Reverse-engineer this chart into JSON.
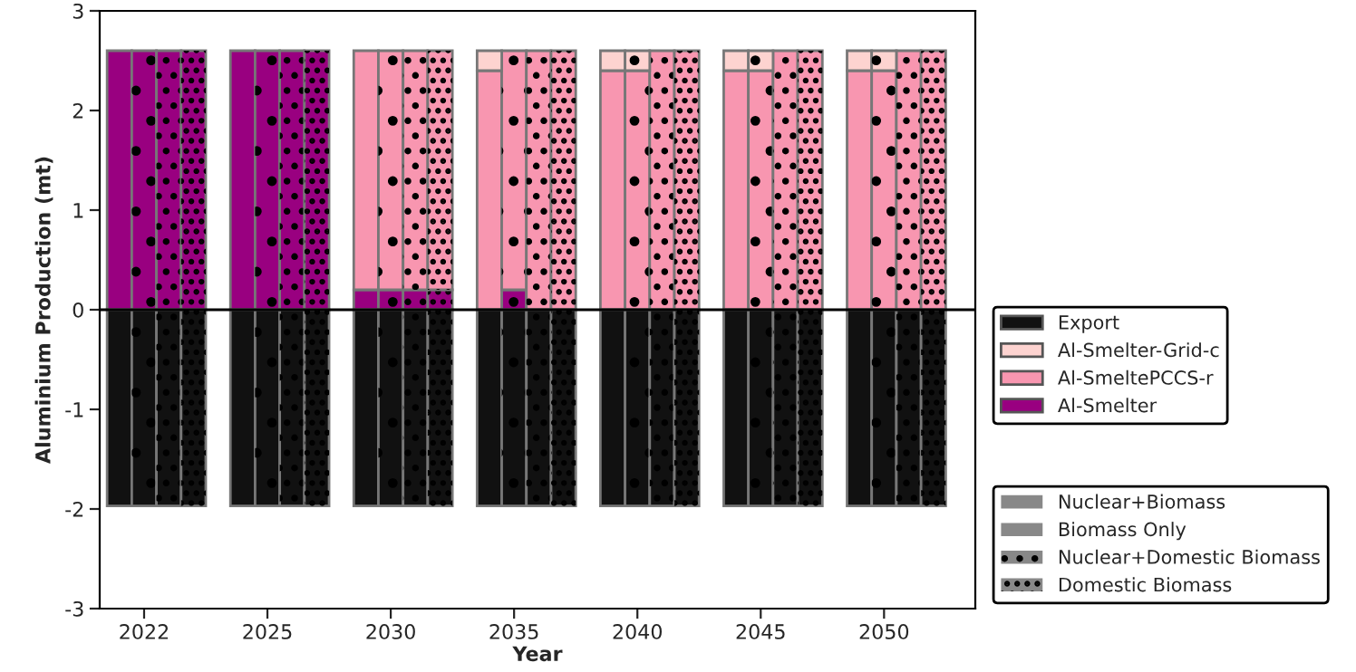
{
  "chart_data": {
    "type": "bar",
    "stacked": true,
    "xlabel": "Year",
    "ylabel": "Aluminium Production (mt)",
    "categories": [
      null,
      "2022",
      null,
      null,
      null,
      null,
      "2025",
      null,
      null,
      null,
      null,
      "2030",
      null,
      null,
      null,
      null,
      "2035",
      null,
      null,
      null,
      null,
      "2040",
      null,
      null,
      null,
      null,
      "2045",
      null,
      null,
      null,
      null,
      "2050",
      null,
      null
    ],
    "series": [
      {
        "name": "Al-Smelter",
        "color": "#990080",
        "values": [
          2.6,
          2.6,
          2.6,
          2.6,
          null,
          2.6,
          2.6,
          2.6,
          2.6,
          null,
          0.2,
          0.2,
          0.2,
          0.2,
          null,
          0,
          0.2,
          0,
          0,
          null,
          0,
          0,
          0,
          0,
          null,
          0,
          0,
          0,
          0,
          null,
          0,
          0,
          0,
          0
        ]
      },
      {
        "name": "Al-SmeltePCCS-r",
        "color": "#f896b0",
        "values": [
          0,
          0,
          0,
          0,
          null,
          0,
          0,
          0,
          0,
          null,
          2.4,
          2.4,
          2.4,
          2.4,
          null,
          2.4,
          2.4,
          2.6,
          2.6,
          null,
          2.4,
          2.4,
          2.6,
          2.6,
          null,
          2.4,
          2.4,
          2.6,
          2.6,
          null,
          2.4,
          2.4,
          2.6,
          2.6
        ]
      },
      {
        "name": "Al-Smelter-Grid-c",
        "color": "#fdd3d0",
        "values": [
          0,
          0,
          0,
          0,
          null,
          0,
          0,
          0,
          0,
          null,
          0,
          0,
          0,
          0,
          null,
          0.2,
          0,
          0,
          0,
          null,
          0.2,
          0.2,
          0,
          0,
          null,
          0.2,
          0.2,
          0,
          0,
          null,
          0.2,
          0.2,
          0,
          0
        ]
      },
      {
        "name": "Export",
        "color": "#111111",
        "values": [
          -1.97,
          -1.97,
          -1.97,
          -1.97,
          null,
          -1.97,
          -1.97,
          -1.97,
          -1.97,
          null,
          -1.97,
          -1.97,
          -1.97,
          -1.97,
          null,
          -1.97,
          -1.97,
          -1.97,
          -1.97,
          null,
          -1.97,
          -1.97,
          -1.97,
          -1.97,
          null,
          -1.97,
          -1.97,
          -1.97,
          -1.97,
          null,
          -1.97,
          -1.97,
          -1.97,
          -1.97
        ]
      }
    ],
    "ylim": [
      -3,
      3
    ],
    "yticks": [
      -3,
      -2,
      -1,
      0,
      1,
      2,
      3
    ],
    "annotations": [
      "Nuclear+Biomass",
      "Biomass Only",
      "Nuclear+Domestic Biomass",
      "Domestic Biomass"
    ],
    "ref_lines": [
      {
        "axis": "y",
        "value": 0,
        "color": "#000000"
      }
    ],
    "legend": "right",
    "grid": false
  }
}
